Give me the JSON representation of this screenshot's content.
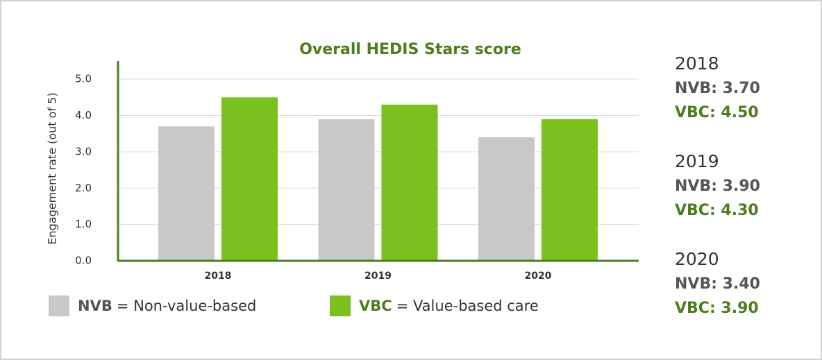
{
  "chart_data": {
    "type": "bar",
    "title": "Overall HEDIS Stars score",
    "y_label": "Engagement rate (out of 5)",
    "categories": [
      "2018",
      "2019",
      "2020"
    ],
    "series": [
      {
        "name": "NVB",
        "description": "= Non-value-based",
        "color": "#c8c8c8",
        "label_color": "#555555",
        "values": [
          3.7,
          3.9,
          3.4
        ],
        "value_labels": [
          "NVB: 3.70",
          "NVB: 3.90",
          "NVB: 3.40"
        ]
      },
      {
        "name": "VBC",
        "description": "= Value-based care",
        "color": "#7ac01e",
        "label_color": "#4e7d1f",
        "values": [
          4.5,
          4.3,
          3.9
        ],
        "value_labels": [
          "VBC: 4.50",
          "VBC: 4.30",
          "VBC: 3.90"
        ]
      }
    ],
    "ylim": [
      0,
      5.5
    ],
    "yticks": [
      {
        "value": 0,
        "label": "0.0"
      },
      {
        "value": 1,
        "label": "1.0"
      },
      {
        "value": 2,
        "label": "2.0"
      },
      {
        "value": 3,
        "label": "3.0"
      },
      {
        "value": 4,
        "label": "4.0"
      },
      {
        "value": 5,
        "label": "5.0"
      }
    ],
    "grid": true
  }
}
